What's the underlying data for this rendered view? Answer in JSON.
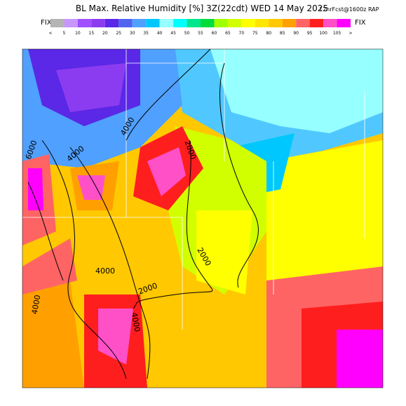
{
  "header": {
    "title": "BL Max. Relative Humidity [%] 3Z(22cdt) WED 14 May 2025",
    "subtitle": "12hrFcst@1600z RAP",
    "fix_left": "FIX",
    "fix_right": "FIX"
  },
  "colorbar": {
    "labels": [
      "<",
      "5",
      "10",
      "15",
      "20",
      "25",
      "30",
      "35",
      "40",
      "45",
      "50",
      "55",
      "60",
      "65",
      "70",
      "75",
      "80",
      "85",
      "90",
      "95",
      "100",
      "105",
      ">"
    ],
    "colors": [
      "#b4b4b4",
      "#c896ff",
      "#a050ff",
      "#8c3cf0",
      "#5a28e6",
      "#5064f0",
      "#50a0ff",
      "#00c8ff",
      "#96ffff",
      "#00ffff",
      "#00e68c",
      "#00dc3c",
      "#a0ff00",
      "#d2ff00",
      "#ffff00",
      "#ffe600",
      "#ffc800",
      "#ffa000",
      "#ff6464",
      "#ff1e1e",
      "#ff50c8",
      "#ff00ff"
    ]
  },
  "map": {
    "contour_labels": [
      "6000",
      "4000",
      "4000",
      "2000",
      "4000",
      "2000",
      "2000",
      "4000",
      "4000"
    ]
  }
}
